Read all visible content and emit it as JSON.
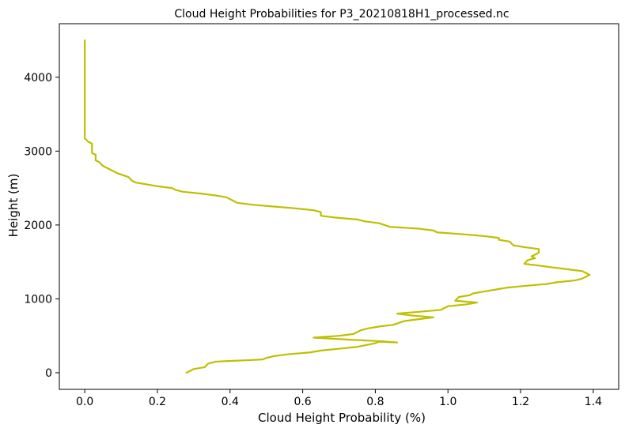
{
  "chart_data": {
    "type": "line",
    "title": "Cloud Height Probabilities for P3_20210818H1_processed.nc",
    "xlabel": "Cloud Height Probability (%)",
    "ylabel": "Height (m)",
    "xlim": [
      -0.07,
      1.47
    ],
    "ylim": [
      -225,
      4725
    ],
    "xticks": [
      0.0,
      0.2,
      0.4,
      0.6,
      0.8,
      1.0,
      1.2,
      1.4
    ],
    "xtick_labels": [
      "0.0",
      "0.2",
      "0.4",
      "0.6",
      "0.8",
      "1.0",
      "1.2",
      "1.4"
    ],
    "yticks": [
      0,
      1000,
      2000,
      3000,
      4000
    ],
    "ytick_labels": [
      "0",
      "1000",
      "2000",
      "3000",
      "4000"
    ],
    "grid": false,
    "line_color": "#bfbf00",
    "series": [
      {
        "x": [
          0.28,
          0.29,
          0.3,
          0.33,
          0.34,
          0.36,
          0.4,
          0.45,
          0.49,
          0.5,
          0.52,
          0.56,
          0.62,
          0.65,
          0.7,
          0.75,
          0.78,
          0.8,
          0.81,
          0.86,
          0.82,
          0.72,
          0.63,
          0.7,
          0.74,
          0.75,
          0.76,
          0.78,
          0.81,
          0.85,
          0.88,
          0.92,
          0.96,
          0.9,
          0.86,
          0.92,
          0.98,
          1.0,
          1.05,
          1.08,
          1.02,
          1.03,
          1.06,
          1.07,
          1.1,
          1.13,
          1.16,
          1.21,
          1.27,
          1.3,
          1.35,
          1.37,
          1.39,
          1.37,
          1.33,
          1.29,
          1.25,
          1.21,
          1.22,
          1.24,
          1.23,
          1.25,
          1.25,
          1.21,
          1.18,
          1.17,
          1.14,
          1.14,
          1.1,
          1.04,
          0.97,
          0.96,
          0.92,
          0.84,
          0.81,
          0.77,
          0.75,
          0.69,
          0.65,
          0.65,
          0.63,
          0.58,
          0.52,
          0.46,
          0.42,
          0.41,
          0.39,
          0.36,
          0.32,
          0.27,
          0.25,
          0.24,
          0.2,
          0.17,
          0.14,
          0.13,
          0.12,
          0.09,
          0.07,
          0.06,
          0.05,
          0.04,
          0.03,
          0.03,
          0.02,
          0.02,
          0.02,
          0.01,
          0.0,
          0.0,
          0.0,
          0.0
        ],
        "y": [
          0,
          25,
          50,
          75,
          125,
          150,
          160,
          170,
          180,
          200,
          225,
          250,
          275,
          300,
          325,
          350,
          380,
          400,
          420,
          410,
          425,
          450,
          475,
          500,
          525,
          550,
          575,
          600,
          625,
          650,
          700,
          725,
          750,
          775,
          800,
          825,
          850,
          900,
          925,
          950,
          975,
          1025,
          1050,
          1075,
          1100,
          1125,
          1150,
          1175,
          1200,
          1225,
          1250,
          1275,
          1325,
          1375,
          1400,
          1425,
          1450,
          1475,
          1525,
          1550,
          1575,
          1625,
          1675,
          1700,
          1725,
          1775,
          1800,
          1825,
          1850,
          1875,
          1900,
          1925,
          1950,
          1975,
          2025,
          2050,
          2075,
          2100,
          2125,
          2175,
          2200,
          2225,
          2250,
          2275,
          2300,
          2325,
          2375,
          2400,
          2425,
          2450,
          2475,
          2500,
          2525,
          2550,
          2575,
          2600,
          2650,
          2700,
          2750,
          2775,
          2800,
          2850,
          2875,
          2950,
          2975,
          3025,
          3100,
          3125,
          3175,
          3225,
          3250,
          4500
        ]
      }
    ]
  }
}
